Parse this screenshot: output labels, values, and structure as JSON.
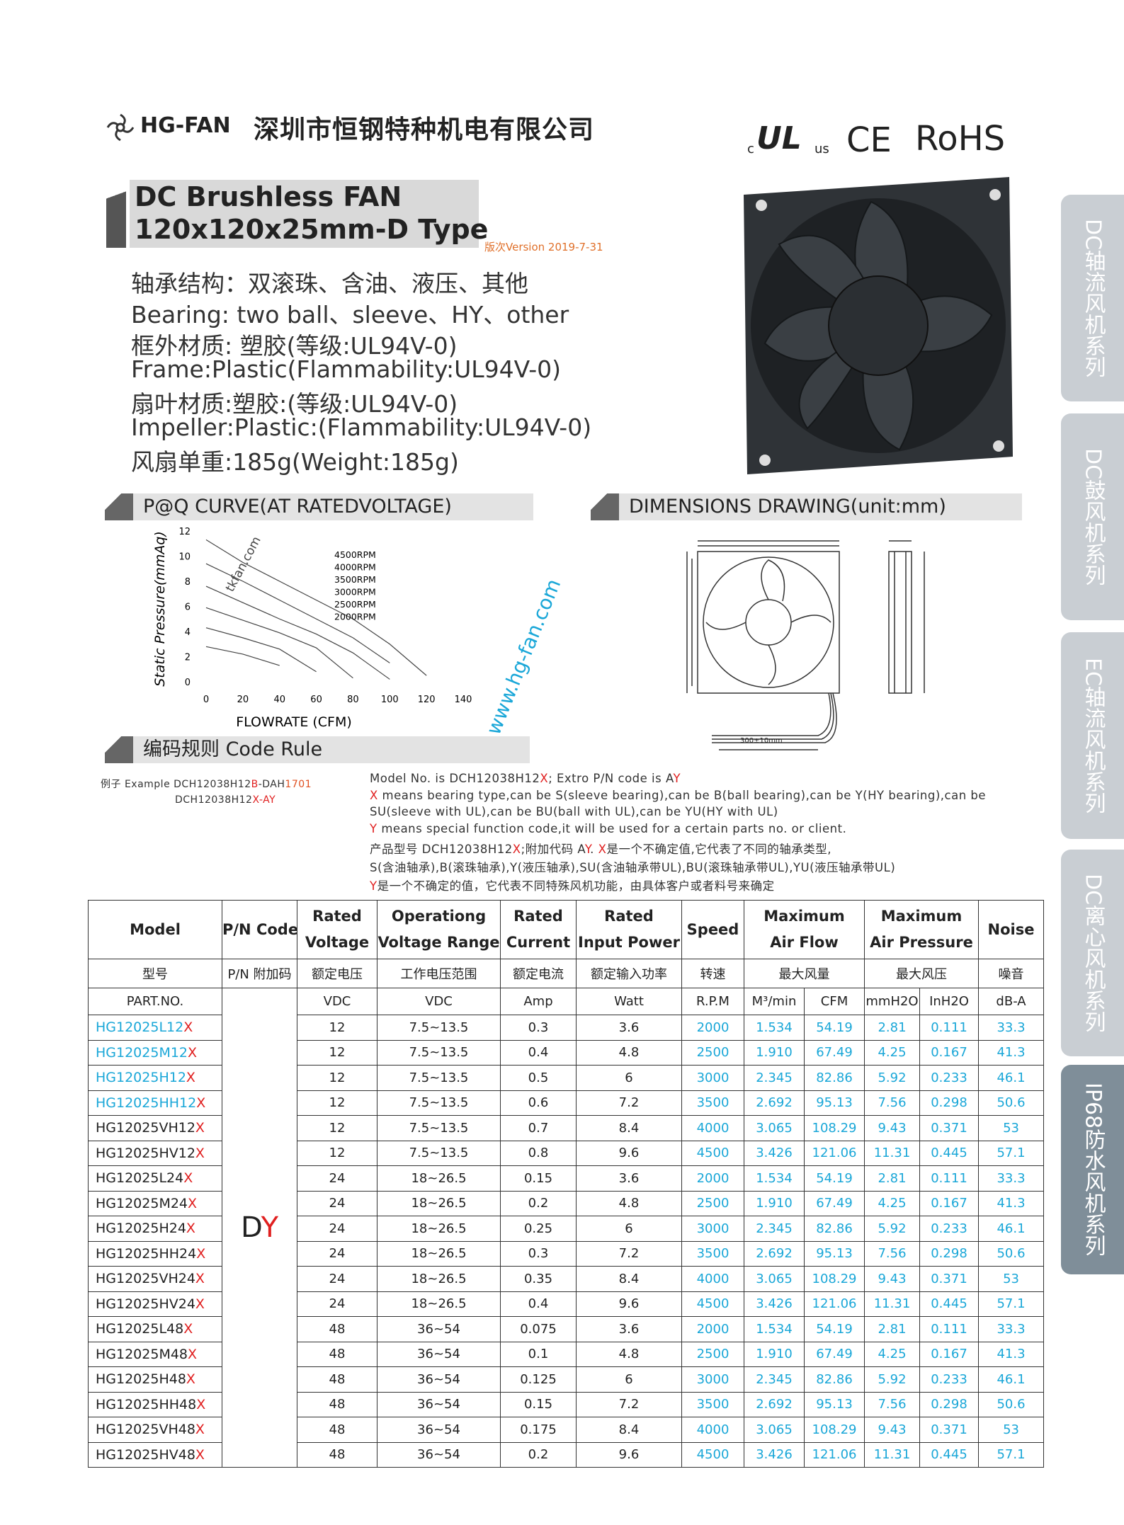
{
  "header": {
    "brand": "HG-FAN",
    "company": "深圳市恒钢特种机电有限公司",
    "certifications": [
      "c",
      "UL",
      "us",
      "CE",
      "RoHS"
    ]
  },
  "title": [
    "DC Brushless FAN",
    "120x120x25mm-D Type"
  ],
  "version": "版次Version 2019-7-31",
  "specs": [
    "轴承结构：双滚珠、含油、液压、其他",
    "Bearing: two ball、sleeve、HY、other",
    "框外材质: 塑胶(等级:UL94V-0)",
    "Frame:Plastic(Flammability:UL94V-0)",
    "扇叶材质:塑胶:(等级:UL94V-0)",
    "Impeller:Plastic:(Flammability:UL94V-0)",
    "风扇单重:185g(Weight:185g)"
  ],
  "side_tabs": [
    "DC轴流风机系列",
    "DC鼓风机系列",
    "EC轴流风机系列",
    "DC离心风机系列",
    "IP68防水风机系列"
  ],
  "pq_curve": {
    "title": "P@Q CURVE(AT RATEDVOLTAGE)",
    "watermark": "tkfan.com",
    "chart_data": {
      "type": "line",
      "x_label": "FLOWRATE (CFM)",
      "y_label": "Static  Pressure(mmAq)",
      "x": [
        0,
        20,
        40,
        60,
        80,
        100,
        120
      ],
      "xlim": [
        0,
        140
      ],
      "xticks": [
        0,
        20,
        40,
        60,
        80,
        100,
        120,
        140
      ],
      "ylim": [
        0,
        12
      ],
      "yticks": [
        0,
        2,
        4,
        6,
        8,
        10,
        12
      ],
      "series": [
        {
          "name": "4500RPM",
          "color": "#444444",
          "values": [
            11.3,
            9.5,
            8,
            6.5,
            5,
            3,
            0.5
          ]
        },
        {
          "name": "4000RPM",
          "color": "#444444",
          "values": [
            9.4,
            8,
            6.5,
            5,
            3.5,
            1.5,
            null
          ]
        },
        {
          "name": "3500RPM",
          "color": "#444444",
          "values": [
            7.6,
            6.3,
            5,
            3.8,
            2.3,
            0.2,
            null
          ]
        },
        {
          "name": "3000RPM",
          "color": "#444444",
          "values": [
            5.9,
            4.9,
            3.9,
            2.7,
            0.3,
            null,
            null
          ]
        },
        {
          "name": "2500RPM",
          "color": "#444444",
          "values": [
            4.3,
            3.5,
            2.6,
            0.8,
            null,
            null,
            null
          ]
        },
        {
          "name": "2000RPM",
          "color": "#444444",
          "values": [
            2.8,
            2.2,
            1.3,
            null,
            null,
            null,
            null
          ]
        }
      ]
    }
  },
  "dimensions": {
    "title": "DIMENSIONS DRAWING(unit:mm)",
    "cable_label": "300±10mm"
  },
  "watermark": "www.hg-fan.com",
  "code_rule": {
    "title": "编码规则 Code Rule",
    "example": [
      [
        "例子 Example DCH12038H12",
        {
          "text": "B",
          "color": "#e02020"
        },
        "-DAH",
        {
          "text": "1701",
          "color": "#e05020"
        }
      ],
      [
        "DCH12038H12",
        {
          "text": "X",
          "color": "#e02020"
        },
        {
          "text": "-AY",
          "color": "#e02020"
        }
      ]
    ],
    "lines": [
      [
        "Model No. is DCH12038H12",
        {
          "text": "X",
          "color": "#e02020"
        },
        "; Extro P/N code  is  A",
        {
          "text": "Y",
          "color": "#e02020"
        }
      ],
      [
        {
          "text": "X",
          "color": "#e02020"
        },
        " means bearing type,can be S(sleeve bearing),can be B(ball bearing),can be Y(HY bearing),can be"
      ],
      [
        "SU(sleeve with UL),can be BU(ball with UL),can be YU(HY with UL)"
      ],
      [
        {
          "text": "Y",
          "color": "#e02020"
        },
        " means special function code,it will be used for a certain parts no. or client."
      ],
      [
        "产品型号 DCH12038H12",
        {
          "text": "X",
          "color": "#e02020"
        },
        ";附加代码 A",
        {
          "text": "Y",
          "color": "#e02020"
        },
        ". ",
        {
          "text": "X",
          "color": "#e02020"
        },
        "是一个不确定值,它代表了不同的轴承类型,"
      ],
      [
        "S(含油轴承),B(滚珠轴承),Y(液压轴承),SU(含油轴承带UL),BU(滚珠轴承带UL),YU(液压轴承带UL)"
      ],
      [
        {
          "text": "Y",
          "color": "#e02020"
        },
        "是一个不确定的值，它代表不同特殊风机功能，由具体客户或者料号来确定"
      ]
    ]
  },
  "table": {
    "header": [
      [
        "Model"
      ],
      [
        "P/N Code"
      ],
      [
        "Rated",
        "Voltage"
      ],
      [
        "Operationg",
        "Voltage Range"
      ],
      [
        "Rated",
        "Current"
      ],
      [
        "Rated",
        "Input Power"
      ],
      [
        "Speed"
      ],
      [
        "Maximum",
        "Air Flow"
      ],
      [
        "Maximum",
        "Air Pressure"
      ],
      [
        "Noise"
      ]
    ],
    "header_cn": [
      "型号",
      "P/N 附加码",
      "额定电压",
      "工作电压范围",
      "额定电流",
      "额定输入功率",
      "转速",
      "最大风量",
      "最大风压",
      "噪音"
    ],
    "units": [
      "PART.NO.",
      "VDC",
      "VDC",
      "Amp",
      "Watt",
      "R.P.M",
      "M³/min",
      "CFM",
      "mmH2O",
      "InH2O",
      "dB-A"
    ],
    "pn_code": [
      "D",
      "Y"
    ],
    "rows": [
      {
        "model": "HG12025L12",
        "suffix": "X",
        "cells": [
          "12",
          "7.5~13.5",
          "0.3",
          "3.6",
          "2000",
          "1.534",
          "54.19",
          "2.81",
          "0.111",
          "33.3"
        ]
      },
      {
        "model": "HG12025M12",
        "suffix": "X",
        "cells": [
          "12",
          "7.5~13.5",
          "0.4",
          "4.8",
          "2500",
          "1.910",
          "67.49",
          "4.25",
          "0.167",
          "41.3"
        ]
      },
      {
        "model": "HG12025H12",
        "suffix": "X",
        "cells": [
          "12",
          "7.5~13.5",
          "0.5",
          "6",
          "3000",
          "2.345",
          "82.86",
          "5.92",
          "0.233",
          "46.1"
        ]
      },
      {
        "model": "HG12025HH12",
        "suffix": "X",
        "cells": [
          "12",
          "7.5~13.5",
          "0.6",
          "7.2",
          "3500",
          "2.692",
          "95.13",
          "7.56",
          "0.298",
          "50.6"
        ]
      },
      {
        "model": "HG12025VH12",
        "suffix": "X",
        "cells": [
          "12",
          "7.5~13.5",
          "0.7",
          "8.4",
          "4000",
          "3.065",
          "108.29",
          "9.43",
          "0.371",
          "53"
        ]
      },
      {
        "model": "HG12025HV12",
        "suffix": "X",
        "cells": [
          "12",
          "7.5~13.5",
          "0.8",
          "9.6",
          "4500",
          "3.426",
          "121.06",
          "11.31",
          "0.445",
          "57.1"
        ]
      },
      {
        "model": "HG12025L24",
        "suffix": "X",
        "cells": [
          "24",
          "18~26.5",
          "0.15",
          "3.6",
          "2000",
          "1.534",
          "54.19",
          "2.81",
          "0.111",
          "33.3"
        ]
      },
      {
        "model": "HG12025M24",
        "suffix": "X",
        "cells": [
          "24",
          "18~26.5",
          "0.2",
          "4.8",
          "2500",
          "1.910",
          "67.49",
          "4.25",
          "0.167",
          "41.3"
        ]
      },
      {
        "model": "HG12025H24",
        "suffix": "X",
        "cells": [
          "24",
          "18~26.5",
          "0.25",
          "6",
          "3000",
          "2.345",
          "82.86",
          "5.92",
          "0.233",
          "46.1"
        ]
      },
      {
        "model": "HG12025HH24",
        "suffix": "X",
        "cells": [
          "24",
          "18~26.5",
          "0.3",
          "7.2",
          "3500",
          "2.692",
          "95.13",
          "7.56",
          "0.298",
          "50.6"
        ]
      },
      {
        "model": "HG12025VH24",
        "suffix": "X",
        "cells": [
          "24",
          "18~26.5",
          "0.35",
          "8.4",
          "4000",
          "3.065",
          "108.29",
          "9.43",
          "0.371",
          "53"
        ]
      },
      {
        "model": "HG12025HV24",
        "suffix": "X",
        "cells": [
          "24",
          "18~26.5",
          "0.4",
          "9.6",
          "4500",
          "3.426",
          "121.06",
          "11.31",
          "0.445",
          "57.1"
        ]
      },
      {
        "model": "HG12025L48",
        "suffix": "X",
        "cells": [
          "48",
          "36~54",
          "0.075",
          "3.6",
          "2000",
          "1.534",
          "54.19",
          "2.81",
          "0.111",
          "33.3"
        ]
      },
      {
        "model": "HG12025M48",
        "suffix": "X",
        "cells": [
          "48",
          "36~54",
          "0.1",
          "4.8",
          "2500",
          "1.910",
          "67.49",
          "4.25",
          "0.167",
          "41.3"
        ]
      },
      {
        "model": "HG12025H48",
        "suffix": "X",
        "cells": [
          "48",
          "36~54",
          "0.125",
          "6",
          "3000",
          "2.345",
          "82.86",
          "5.92",
          "0.233",
          "46.1"
        ]
      },
      {
        "model": "HG12025HH48",
        "suffix": "X",
        "cells": [
          "48",
          "36~54",
          "0.15",
          "7.2",
          "3500",
          "2.692",
          "95.13",
          "7.56",
          "0.298",
          "50.6"
        ]
      },
      {
        "model": "HG12025VH48",
        "suffix": "X",
        "cells": [
          "48",
          "36~54",
          "0.175",
          "8.4",
          "4000",
          "3.065",
          "108.29",
          "9.43",
          "0.371",
          "53"
        ]
      },
      {
        "model": "HG12025HV48",
        "suffix": "X",
        "cells": [
          "48",
          "36~54",
          "0.2",
          "9.6",
          "4500",
          "3.426",
          "121.06",
          "11.31",
          "0.445",
          "57.1"
        ]
      }
    ]
  }
}
